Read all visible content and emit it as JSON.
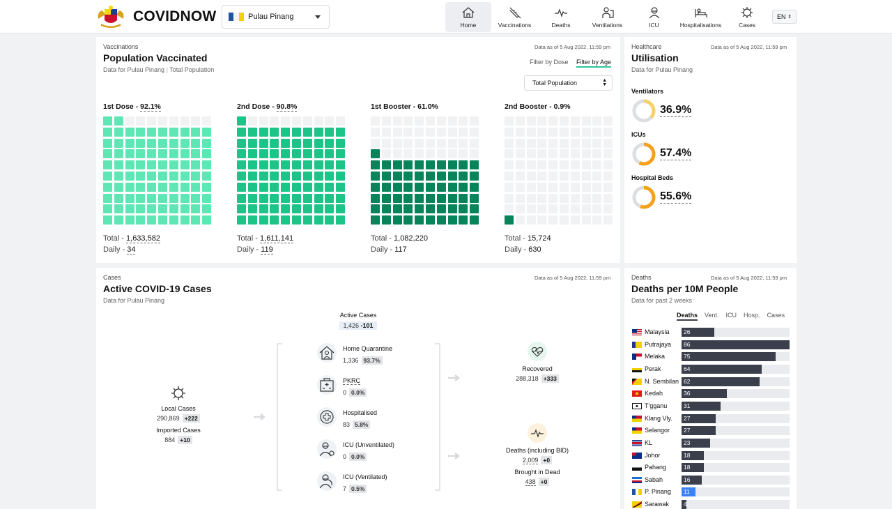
{
  "header": {
    "brand": "COVIDNOW",
    "state": "Pulau Pinang",
    "lang": "EN",
    "nav": [
      {
        "label": "Home",
        "icon": "home-icon",
        "active": true
      },
      {
        "label": "Vaccinations",
        "icon": "syringe-icon"
      },
      {
        "label": "Deaths",
        "icon": "pulse-icon"
      },
      {
        "label": "Ventilations",
        "icon": "ventilator-icon"
      },
      {
        "label": "ICU",
        "icon": "icu-icon"
      },
      {
        "label": "Hospitalisations",
        "icon": "hospital-bed-icon"
      },
      {
        "label": "Cases",
        "icon": "virus-icon"
      }
    ]
  },
  "vaccination": {
    "tag": "Vaccinations",
    "title": "Population Vaccinated",
    "sub_state": "Data for Pulau Pinang",
    "sub_pop": "Total Population",
    "asof": "Data as of 5 Aug 2022, 11:59 pm",
    "filter_dose": "Filter by Dose",
    "filter_age": "Filter by Age",
    "select": "Total Population",
    "total_label": "Total - ",
    "daily_label": "Daily - ",
    "doses": [
      {
        "label": "1st Dose - ",
        "pct": "92.1%",
        "fraction": 0.921,
        "total": "1,633,582",
        "daily": "34",
        "color": "#5ee6b4"
      },
      {
        "label": "2nd Dose - ",
        "pct": "90.8%",
        "fraction": 0.908,
        "total": "1,611,141",
        "daily": "119",
        "color": "#1dc488"
      },
      {
        "label": "1st Booster - ",
        "pct": "61.0%",
        "fraction": 0.61,
        "total": "1,082,220",
        "daily": "117",
        "color": "#07845a"
      },
      {
        "label": "2nd Booster - ",
        "pct": "0.9%",
        "fraction": 0.009,
        "total": "15,724",
        "daily": "630",
        "color": "#07845a"
      }
    ]
  },
  "healthcare": {
    "tag": "Healthcare",
    "title": "Utilisation",
    "sub": "Data for Pulau Pinang",
    "asof": "Data as of 5 Aug 2022, 11:59 pm",
    "items": [
      {
        "label": "Ventilators",
        "value": "36.9%",
        "fraction": 0.369,
        "color": "#f7d26a"
      },
      {
        "label": "ICUs",
        "value": "57.4%",
        "fraction": 0.574,
        "color": "#f4a11b"
      },
      {
        "label": "Hospital Beds",
        "value": "55.6%",
        "fraction": 0.556,
        "color": "#f4a11b"
      }
    ]
  },
  "cases": {
    "tag": "Cases",
    "title": "Active COVID-19 Cases",
    "sub": "Data for Pulau Pinang",
    "asof": "Data as of 5 Aug 2022, 11:59 pm",
    "active": {
      "label": "Active Cases",
      "value": "1,426",
      "delta": "-101"
    },
    "local": {
      "label": "Local Cases",
      "value": "290,869",
      "delta": "+222"
    },
    "imported": {
      "label": "Imported Cases",
      "value": "884",
      "delta": "+10"
    },
    "subs": [
      {
        "label": "Home Quarantine",
        "value": "1,336",
        "pct": "93.7%",
        "icon": "home-quarantine-icon"
      },
      {
        "label": "PKRC",
        "value": "0",
        "pct": "0.0%",
        "icon": "quarantine-centre-icon"
      },
      {
        "label": "Hospitalised",
        "value": "83",
        "pct": "5.8%",
        "icon": "medical-cross-icon"
      },
      {
        "label": "ICU (Unventilated)",
        "value": "0",
        "pct": "0.0%",
        "icon": "icu-patient-icon"
      },
      {
        "label": "ICU (Ventilated)",
        "value": "7",
        "pct": "0.5%",
        "icon": "ventilated-patient-icon"
      }
    ],
    "recovered": {
      "label": "Recovered",
      "value": "288,318",
      "delta": "+333"
    },
    "deaths": {
      "label": "Deaths (including BID)",
      "value": "2,009",
      "delta": "+0"
    },
    "bid": {
      "label": "Brought in Dead",
      "value": "438",
      "delta": "+0"
    }
  },
  "deaths": {
    "tag": "Deaths",
    "title": "Deaths per 10M People",
    "sub": "Data for past 2 weeks",
    "asof": "Data as of 5 Aug 2022, 11:59 pm",
    "tabs": [
      "Deaths",
      "Vent.",
      "ICU",
      "Hosp.",
      "Cases"
    ],
    "chart_data": {
      "type": "bar",
      "orientation": "horizontal",
      "categories": [
        "Malaysia",
        "Putrajaya",
        "Melaka",
        "Perak",
        "N. Sembilan",
        "Kedah",
        "T'gganu",
        "Klang Vly.",
        "Selangor",
        "KL",
        "Johor",
        "Pahang",
        "Sabah",
        "P. Pinang",
        "Sarawak"
      ],
      "values": [
        26,
        86,
        75,
        64,
        62,
        36,
        31,
        27,
        27,
        23,
        18,
        18,
        16,
        11,
        4
      ],
      "xlim": [
        0,
        86
      ],
      "highlight": "P. Pinang",
      "bar_color": "#3a3f4b",
      "highlight_color": "#3b82f6"
    }
  }
}
